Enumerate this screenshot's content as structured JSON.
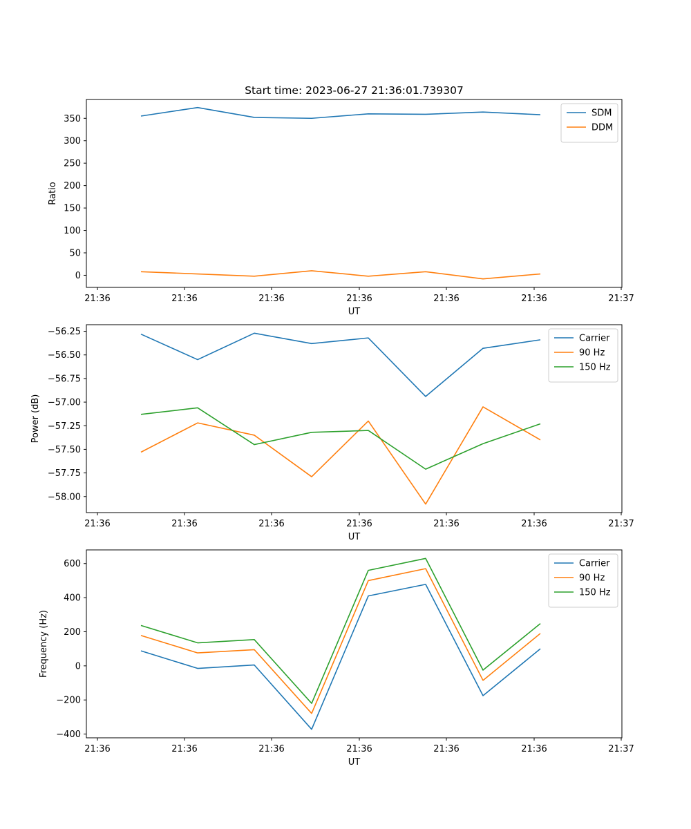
{
  "chart_data": [
    {
      "type": "line",
      "title": "Start time: 2023-06-27 21:36:01.739307",
      "xlabel": "UT",
      "ylabel": "Ratio",
      "x_tick_labels": [
        "21:36",
        "21:36",
        "21:36",
        "21:36",
        "21:36",
        "21:36",
        "21:37"
      ],
      "y_ticks": [
        0,
        50,
        100,
        150,
        200,
        250,
        300,
        350
      ],
      "y_tick_labels": [
        "0",
        "50",
        "100",
        "150",
        "200",
        "250",
        "300",
        "350"
      ],
      "ylim": [
        -27,
        392
      ],
      "grid": false,
      "legend_position": "top-right",
      "series": [
        {
          "name": "SDM",
          "color": "#1f77b4",
          "values": [
            355,
            374,
            352,
            350,
            360,
            359,
            364,
            358
          ]
        },
        {
          "name": "DDM",
          "color": "#ff7f0e",
          "values": [
            8,
            3,
            -2,
            10,
            -2,
            8,
            -8,
            3
          ]
        }
      ]
    },
    {
      "type": "line",
      "xlabel": "UT",
      "ylabel": "Power (dB)",
      "x_tick_labels": [
        "21:36",
        "21:36",
        "21:36",
        "21:36",
        "21:36",
        "21:36",
        "21:37"
      ],
      "y_ticks": [
        -58.0,
        -57.75,
        -57.5,
        -57.25,
        -57.0,
        -56.75,
        -56.5,
        -56.25
      ],
      "y_tick_labels": [
        "−58.00",
        "−57.75",
        "−57.50",
        "−57.25",
        "−57.00",
        "−56.75",
        "−56.50",
        "−56.25"
      ],
      "ylim": [
        -58.17,
        -56.18
      ],
      "grid": false,
      "legend_position": "top-right",
      "series": [
        {
          "name": "Carrier",
          "color": "#1f77b4",
          "values": [
            -56.28,
            -56.55,
            -56.27,
            -56.38,
            -56.32,
            -56.94,
            -56.43,
            -56.34
          ]
        },
        {
          "name": "90 Hz",
          "color": "#ff7f0e",
          "values": [
            -57.53,
            -57.22,
            -57.35,
            -57.79,
            -57.2,
            -58.08,
            -57.05,
            -57.4
          ]
        },
        {
          "name": "150 Hz",
          "color": "#2ca02c",
          "values": [
            -57.13,
            -57.06,
            -57.45,
            -57.32,
            -57.3,
            -57.71,
            -57.44,
            -57.23
          ]
        }
      ]
    },
    {
      "type": "line",
      "xlabel": "UT",
      "ylabel": "Frequency (Hz)",
      "x_tick_labels": [
        "21:36",
        "21:36",
        "21:36",
        "21:36",
        "21:36",
        "21:36",
        "21:37"
      ],
      "y_ticks": [
        -400,
        -200,
        0,
        200,
        400,
        600
      ],
      "y_tick_labels": [
        "−400",
        "−200",
        "0",
        "200",
        "400",
        "600"
      ],
      "ylim": [
        -422,
        680
      ],
      "grid": false,
      "legend_position": "top-right",
      "series": [
        {
          "name": "Carrier",
          "color": "#1f77b4",
          "values": [
            88,
            -15,
            5,
            -372,
            410,
            478,
            -175,
            100
          ]
        },
        {
          "name": "90 Hz",
          "color": "#ff7f0e",
          "values": [
            178,
            76,
            95,
            -279,
            500,
            570,
            -85,
            190
          ]
        },
        {
          "name": "150 Hz",
          "color": "#2ca02c",
          "values": [
            237,
            135,
            154,
            -220,
            560,
            630,
            -25,
            248
          ]
        }
      ]
    }
  ]
}
